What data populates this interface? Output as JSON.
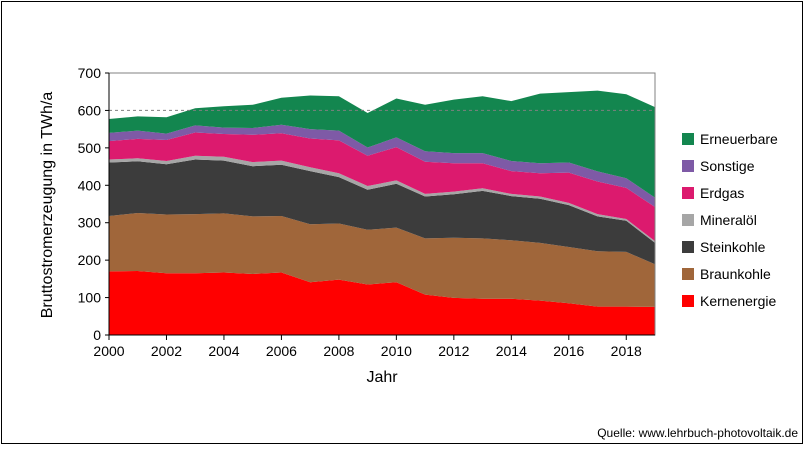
{
  "chart_data": {
    "type": "area",
    "stacked": true,
    "source": "Quelle: www.lehrbuch-photovoltaik.de",
    "xlabel": "Jahr",
    "ylabel": "Bruttostromerzeugung in TWh/a",
    "xlim": [
      2000,
      2019
    ],
    "ylim": [
      0,
      700
    ],
    "x_ticks": [
      2000,
      2002,
      2004,
      2006,
      2008,
      2010,
      2012,
      2014,
      2016,
      2018
    ],
    "y_ticks": [
      0,
      100,
      200,
      300,
      400,
      500,
      600,
      700
    ],
    "x_tick_labels": [
      "2000",
      "2002",
      "2004",
      "2006",
      "2008",
      "2010",
      "2012",
      "2014",
      "2016",
      "2018"
    ],
    "y_tick_labels": [
      "0",
      "100",
      "200",
      "300",
      "400",
      "500",
      "600",
      "700"
    ],
    "reference_line": 600,
    "legend_position": "right",
    "x": [
      2000,
      2001,
      2002,
      2003,
      2004,
      2005,
      2006,
      2007,
      2008,
      2009,
      2010,
      2011,
      2012,
      2013,
      2014,
      2015,
      2016,
      2017,
      2018,
      2019
    ],
    "series": [
      {
        "name": "Kernenergie",
        "color": "#ff0000",
        "values": [
          170,
          171,
          165,
          165,
          167,
          163,
          167,
          141,
          148,
          135,
          141,
          108,
          99,
          97,
          97,
          92,
          85,
          76,
          76,
          75
        ]
      },
      {
        "name": "Braunkohle",
        "color": "#a0663a",
        "values": [
          148,
          155,
          157,
          158,
          158,
          154,
          151,
          155,
          150,
          146,
          146,
          150,
          161,
          161,
          156,
          154,
          150,
          148,
          146,
          114
        ]
      },
      {
        "name": "Steinkohle",
        "color": "#3c3c3c",
        "values": [
          143,
          138,
          134,
          146,
          141,
          134,
          137,
          142,
          124,
          107,
          117,
          112,
          116,
          127,
          118,
          118,
          112,
          93,
          83,
          57
        ]
      },
      {
        "name": "Mineralöl",
        "color": "#a6a6a6",
        "values": [
          8,
          8,
          9,
          10,
          10,
          11,
          11,
          10,
          10,
          10,
          9,
          7,
          7,
          7,
          6,
          6,
          6,
          6,
          5,
          5
        ]
      },
      {
        "name": "Erdgas",
        "color": "#dc1a6e",
        "values": [
          49,
          52,
          56,
          62,
          61,
          73,
          73,
          77,
          88,
          81,
          89,
          86,
          76,
          67,
          61,
          62,
          81,
          87,
          83,
          91
        ]
      },
      {
        "name": "Sonstige",
        "color": "#7e5aa6",
        "values": [
          22,
          22,
          17,
          19,
          17,
          18,
          23,
          25,
          26,
          22,
          26,
          28,
          27,
          27,
          27,
          27,
          27,
          27,
          26,
          25
        ]
      },
      {
        "name": "Erneuerbare",
        "color": "#13864f",
        "values": [
          37,
          38,
          44,
          46,
          57,
          62,
          72,
          90,
          92,
          92,
          104,
          124,
          143,
          152,
          160,
          186,
          188,
          216,
          224,
          242
        ]
      }
    ]
  }
}
